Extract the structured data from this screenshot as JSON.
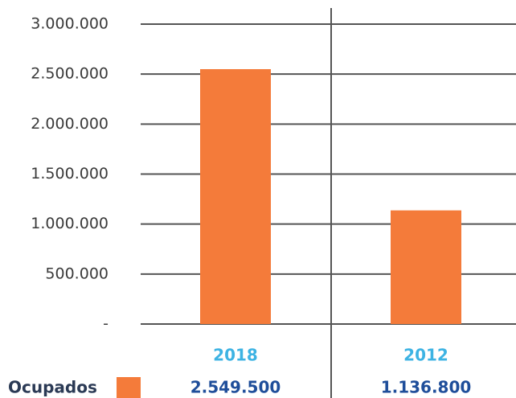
{
  "chart_data": {
    "type": "bar",
    "categories": [
      "2018",
      "2012"
    ],
    "series": [
      {
        "name": "Ocupados",
        "color": "#f47b3a",
        "values": [
          2549500,
          1136800
        ],
        "value_labels": [
          "2.549.500",
          "1.136.800"
        ]
      }
    ],
    "ylim": [
      0,
      3000000
    ],
    "yticks": [
      {
        "value": 0,
        "label": "-"
      },
      {
        "value": 500000,
        "label": "500.000"
      },
      {
        "value": 1000000,
        "label": "1.000.000"
      },
      {
        "value": 1500000,
        "label": "1.500.000"
      },
      {
        "value": 2000000,
        "label": "2.000.000"
      },
      {
        "value": 2500000,
        "label": "2.500.000"
      },
      {
        "value": 3000000,
        "label": "3.000.000"
      }
    ],
    "grid": true
  }
}
